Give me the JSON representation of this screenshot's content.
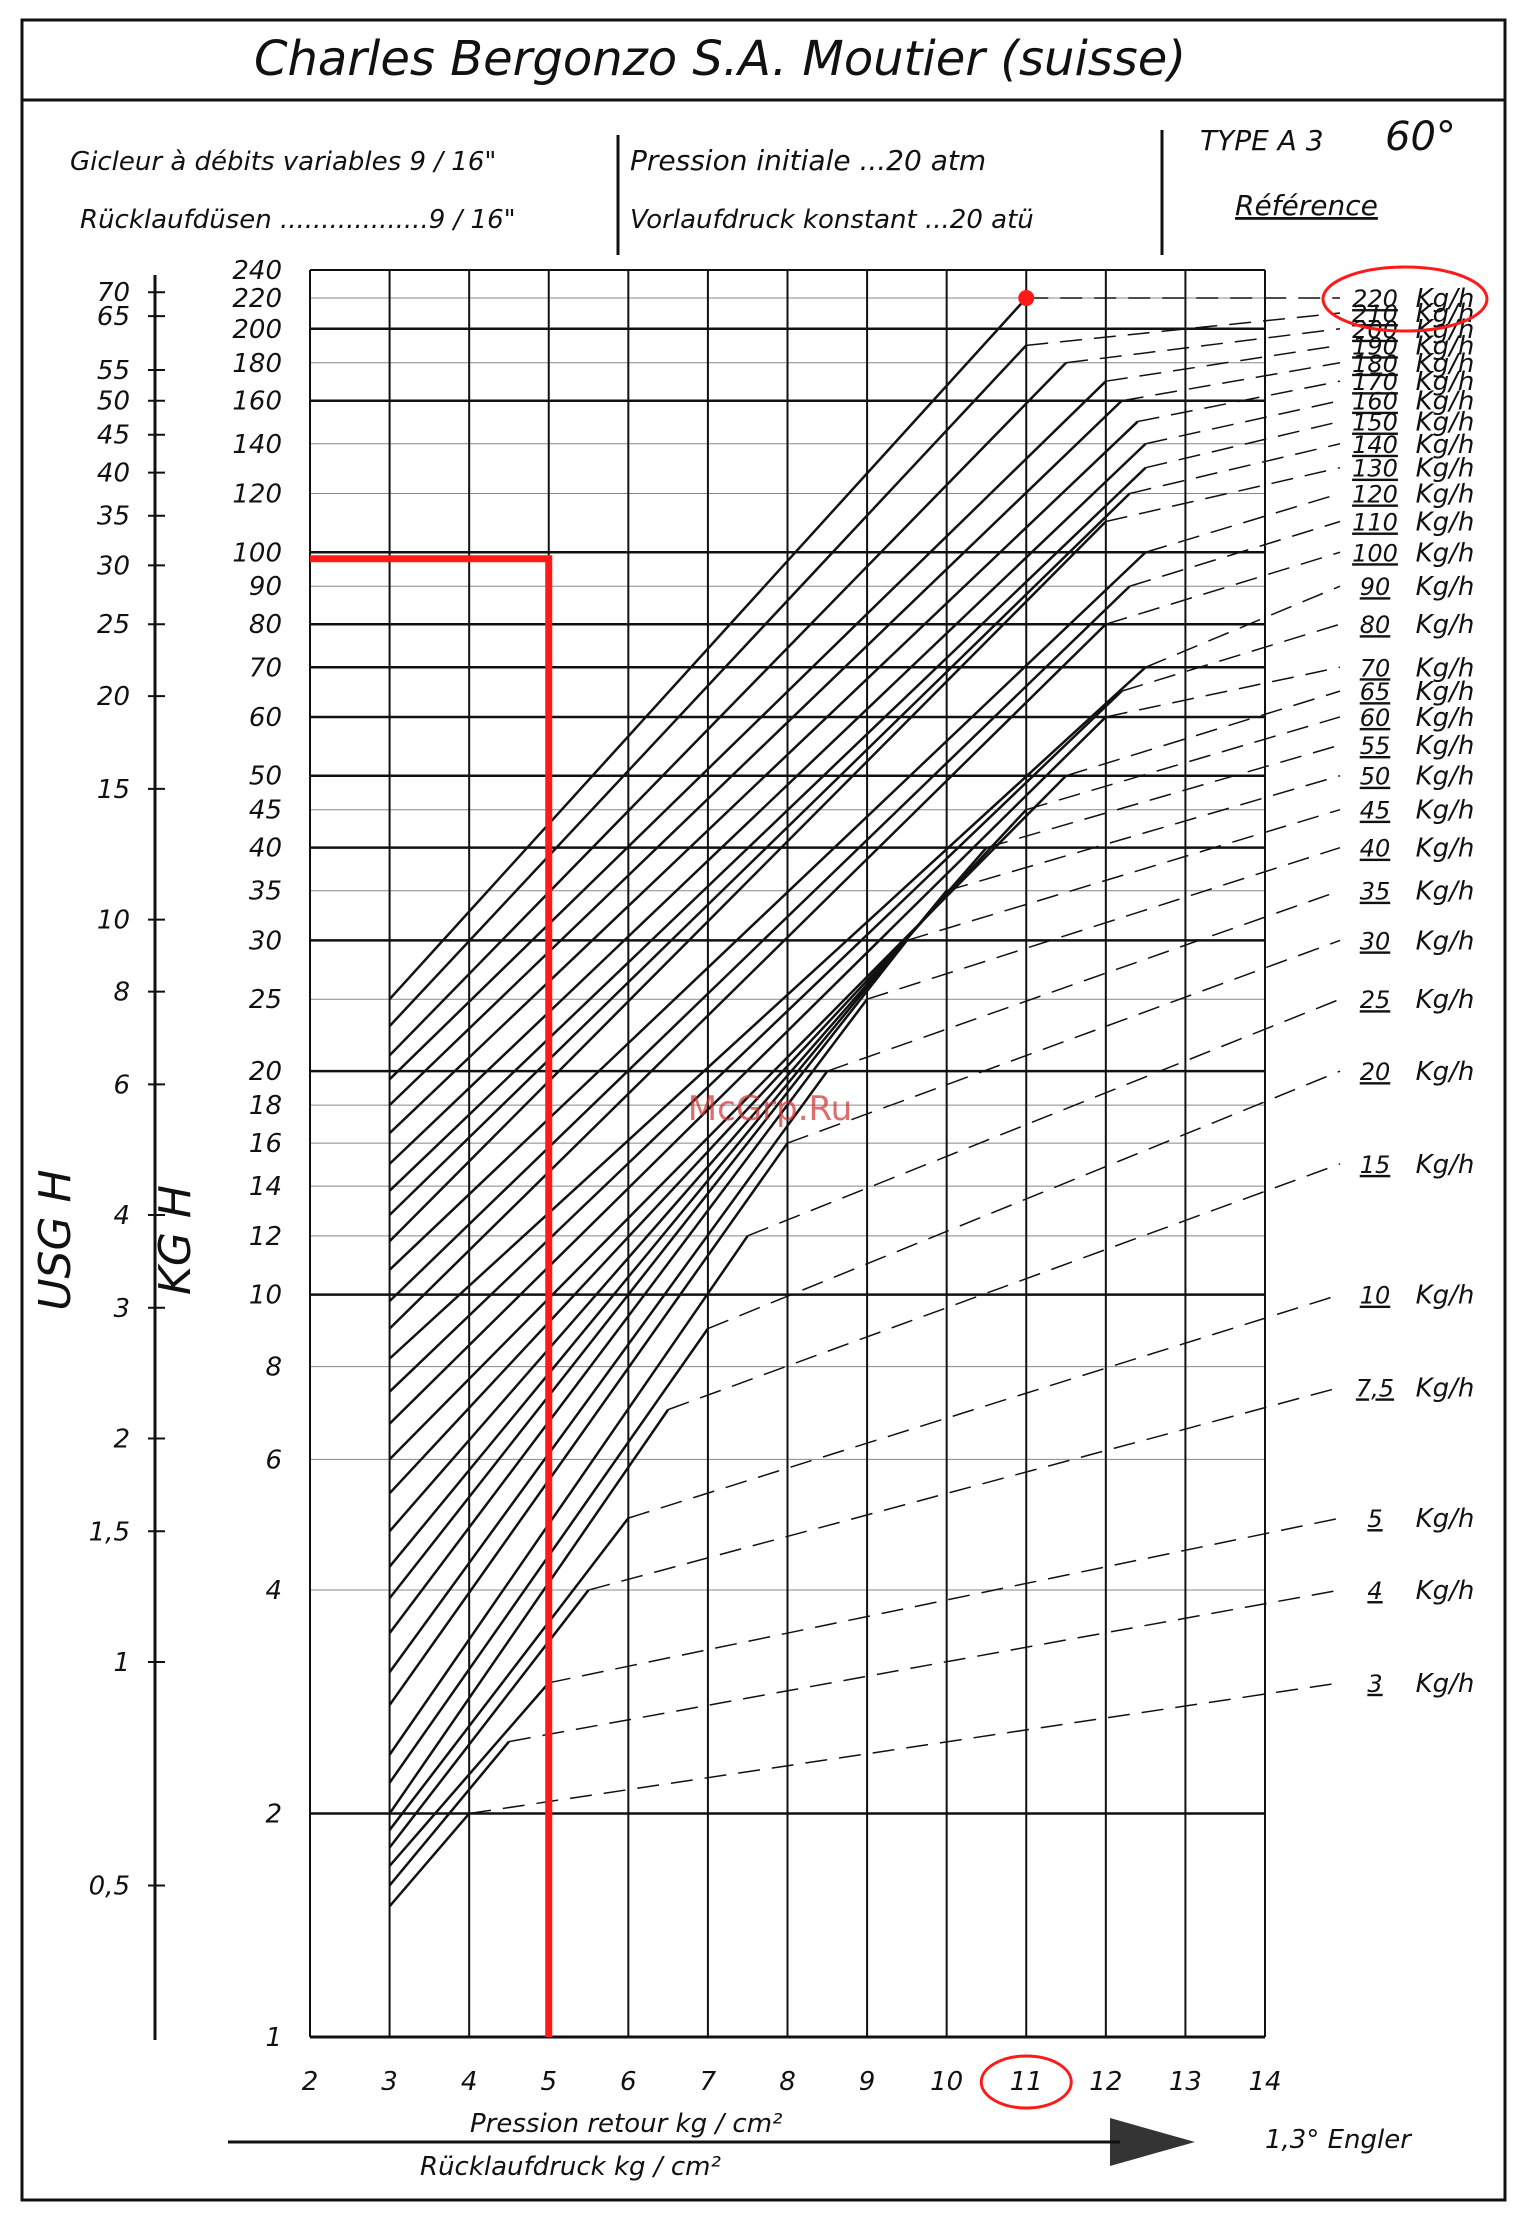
{
  "header": {
    "title": "Charles Bergonzo S.A. Moutier (suisse)",
    "gicleur": "Gicleur à débits variables 9 / 16\"",
    "rucklauf": "Rücklaufdüsen ..................9 / 16\"",
    "pression_initiale": "Pression initiale ...20 atm",
    "vorlauf": "Vorlaufdruck konstant ...20 atü",
    "type": "TYPE A 3",
    "angle": "60°",
    "reference": "Référence"
  },
  "watermark": "McGrp.Ru",
  "footnote": "1,3° Engler",
  "chart_data": {
    "type": "line",
    "title": "Charles Bergonzo S.A. Moutier (suisse)",
    "xlabel": "Pression retour kg / cm²",
    "xlabel2": "Rücklaufdruck kg / cm²",
    "ylabel": "KG H",
    "ylabel2": "USG H",
    "yscale": "log",
    "xlim": [
      2,
      14
    ],
    "ylim": [
      1,
      240
    ],
    "x_ticks": [
      "2",
      "3",
      "4",
      "5",
      "6",
      "7",
      "8",
      "9",
      "10",
      "11",
      "12",
      "13",
      "14"
    ],
    "kgh_ticks": [
      "1",
      "2",
      "4",
      "6",
      "8",
      "10",
      "12",
      "14",
      "16",
      "18",
      "20",
      "25",
      "30",
      "35",
      "40",
      "45",
      "50",
      "60",
      "70",
      "80",
      "90",
      "100",
      "120",
      "140",
      "160",
      "180",
      "200",
      "220",
      "240"
    ],
    "usgh_ticks": [
      "0,5",
      "1",
      "1,5",
      "2",
      "3",
      "4",
      "6",
      "8",
      "10",
      "15",
      "20",
      "25",
      "30",
      "35",
      "40",
      "45",
      "50",
      "55",
      "65",
      "70"
    ],
    "reference_labels": [
      {
        "value": "220",
        "unit": "Kg/h",
        "y": 220
      },
      {
        "value": "210",
        "unit": "Kg/h",
        "y": 210
      },
      {
        "value": "200",
        "unit": "Kg/h",
        "y": 200
      },
      {
        "value": "190",
        "unit": "Kg/h",
        "y": 190
      },
      {
        "value": "180",
        "unit": "Kg/h",
        "y": 180
      },
      {
        "value": "170",
        "unit": "Kg/h",
        "y": 170
      },
      {
        "value": "160",
        "unit": "Kg/h",
        "y": 160
      },
      {
        "value": "150",
        "unit": "Kg/h",
        "y": 150
      },
      {
        "value": "140",
        "unit": "Kg/h",
        "y": 140
      },
      {
        "value": "130",
        "unit": "Kg/h",
        "y": 130
      },
      {
        "value": "120",
        "unit": "Kg/h",
        "y": 120
      },
      {
        "value": "110",
        "unit": "Kg/h",
        "y": 110
      },
      {
        "value": "100",
        "unit": "Kg/h",
        "y": 100
      },
      {
        "value": "90",
        "unit": "Kg/h",
        "y": 90
      },
      {
        "value": "80",
        "unit": "Kg/h",
        "y": 80
      },
      {
        "value": "70",
        "unit": "Kg/h",
        "y": 70
      },
      {
        "value": "65",
        "unit": "Kg/h",
        "y": 65
      },
      {
        "value": "60",
        "unit": "Kg/h",
        "y": 60
      },
      {
        "value": "55",
        "unit": "Kg/h",
        "y": 55
      },
      {
        "value": "50",
        "unit": "Kg/h",
        "y": 50
      },
      {
        "value": "45",
        "unit": "Kg/h",
        "y": 45
      },
      {
        "value": "40",
        "unit": "Kg/h",
        "y": 40
      },
      {
        "value": "35",
        "unit": "Kg/h",
        "y": 35
      },
      {
        "value": "30",
        "unit": "Kg/h",
        "y": 30
      },
      {
        "value": "25",
        "unit": "Kg/h",
        "y": 25
      },
      {
        "value": "20",
        "unit": "Kg/h",
        "y": 20
      },
      {
        "value": "15",
        "unit": "Kg/h",
        "y": 15
      },
      {
        "value": "10",
        "unit": "Kg/h",
        "y": 10
      },
      {
        "value": "7,5",
        "unit": "Kg/h",
        "y": 7.5
      },
      {
        "value": "5",
        "unit": "Kg/h",
        "y": 5
      },
      {
        "value": "4",
        "unit": "Kg/h",
        "y": 4
      },
      {
        "value": "3",
        "unit": "Kg/h",
        "y": 3
      }
    ],
    "series": [
      {
        "ref": 220,
        "points": [
          [
            3.0,
            25.0
          ],
          [
            11.0,
            220
          ]
        ]
      },
      {
        "ref": 210,
        "points": [
          [
            3.0,
            23.0
          ],
          [
            11.0,
            190
          ]
        ]
      },
      {
        "ref": 200,
        "points": [
          [
            3.0,
            21.0
          ],
          [
            11.5,
            180
          ]
        ]
      },
      {
        "ref": 190,
        "points": [
          [
            3.0,
            19.5
          ],
          [
            12.0,
            170
          ]
        ]
      },
      {
        "ref": 180,
        "points": [
          [
            3.0,
            18.0
          ],
          [
            12.2,
            160
          ]
        ]
      },
      {
        "ref": 170,
        "points": [
          [
            3.0,
            16.5
          ],
          [
            12.4,
            150
          ]
        ]
      },
      {
        "ref": 160,
        "points": [
          [
            3.0,
            15.0
          ],
          [
            12.5,
            140
          ]
        ]
      },
      {
        "ref": 150,
        "points": [
          [
            3.0,
            13.8
          ],
          [
            12.5,
            130
          ]
        ]
      },
      {
        "ref": 140,
        "points": [
          [
            3.0,
            12.8
          ],
          [
            12.3,
            120
          ]
        ]
      },
      {
        "ref": 130,
        "points": [
          [
            3.0,
            11.8
          ],
          [
            12.0,
            110
          ]
        ]
      },
      {
        "ref": 120,
        "points": [
          [
            3.0,
            10.8
          ],
          [
            12.5,
            100
          ]
        ]
      },
      {
        "ref": 110,
        "points": [
          [
            3.0,
            9.8
          ],
          [
            12.3,
            90
          ]
        ]
      },
      {
        "ref": 100,
        "points": [
          [
            3.0,
            9.0
          ],
          [
            12.0,
            80
          ]
        ]
      },
      {
        "ref": 90,
        "points": [
          [
            3.0,
            8.2
          ],
          [
            12.5,
            70
          ]
        ]
      },
      {
        "ref": 80,
        "points": [
          [
            3.0,
            7.4
          ],
          [
            12.2,
            65
          ]
        ]
      },
      {
        "ref": 70,
        "points": [
          [
            3.0,
            6.7
          ],
          [
            12.0,
            60
          ]
        ]
      },
      {
        "ref": 65,
        "points": [
          [
            3.0,
            6.0
          ],
          [
            11.5,
            50
          ]
        ]
      },
      {
        "ref": 60,
        "points": [
          [
            3.0,
            5.4
          ],
          [
            11.0,
            45
          ]
        ]
      },
      {
        "ref": 55,
        "points": [
          [
            3.0,
            4.8
          ],
          [
            10.5,
            40
          ]
        ]
      },
      {
        "ref": 50,
        "points": [
          [
            3.0,
            4.3
          ],
          [
            10.0,
            35
          ]
        ]
      },
      {
        "ref": 45,
        "points": [
          [
            3.0,
            3.9
          ],
          [
            9.5,
            30
          ]
        ]
      },
      {
        "ref": 40,
        "points": [
          [
            3.0,
            3.5
          ],
          [
            9.0,
            25
          ]
        ]
      },
      {
        "ref": 35,
        "points": [
          [
            3.0,
            3.1
          ],
          [
            8.5,
            20
          ]
        ]
      },
      {
        "ref": 30,
        "points": [
          [
            3.0,
            2.8
          ],
          [
            8.0,
            16
          ]
        ]
      },
      {
        "ref": 25,
        "points": [
          [
            3.0,
            2.4
          ],
          [
            7.5,
            12
          ]
        ]
      },
      {
        "ref": 20,
        "points": [
          [
            3.0,
            2.2
          ],
          [
            7.0,
            9
          ]
        ]
      },
      {
        "ref": 15,
        "points": [
          [
            3.0,
            2.0
          ],
          [
            6.5,
            7
          ]
        ]
      },
      {
        "ref": 10,
        "points": [
          [
            3.0,
            1.9
          ],
          [
            6.0,
            5
          ]
        ]
      },
      {
        "ref": 7.5,
        "points": [
          [
            3.0,
            1.8
          ],
          [
            5.5,
            4
          ]
        ]
      },
      {
        "ref": 5,
        "points": [
          [
            3.0,
            1.7
          ],
          [
            5.0,
            3
          ]
        ]
      },
      {
        "ref": 4,
        "points": [
          [
            3.0,
            1.6
          ],
          [
            4.5,
            2.5
          ]
        ]
      },
      {
        "ref": 3,
        "points": [
          [
            3.0,
            1.5
          ],
          [
            4.0,
            2
          ]
        ]
      }
    ],
    "highlight": {
      "x": 5,
      "y": 98,
      "marker_x": 11,
      "marker_y": 220,
      "circled_ref": "220",
      "circled_tick": "11"
    },
    "grid": true,
    "colors": {
      "ink": "#111111",
      "highlight": "#ff1a1a"
    }
  }
}
